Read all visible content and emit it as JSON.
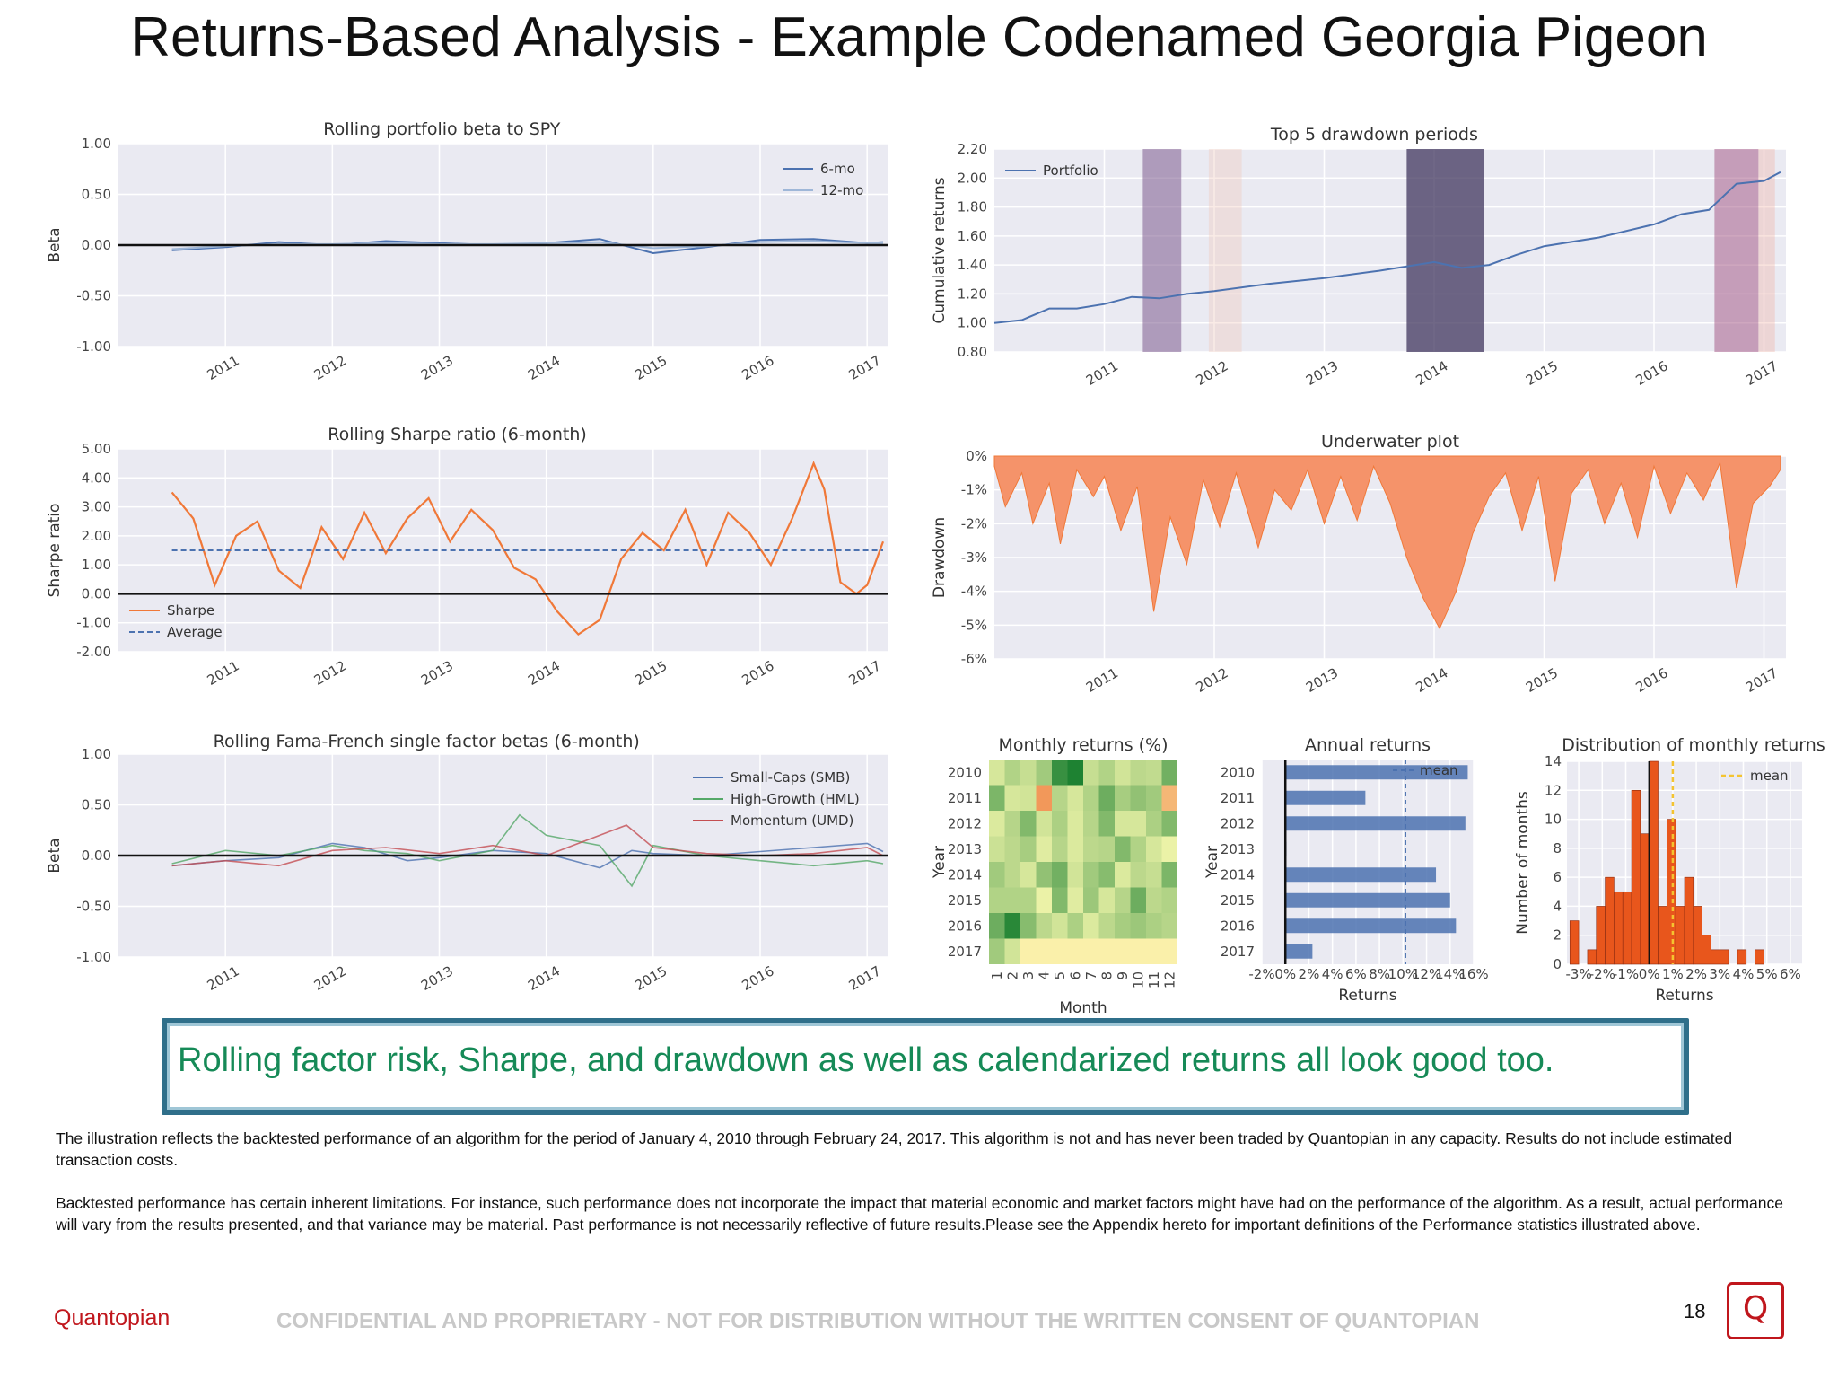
{
  "slide": {
    "title": "Returns-Based Analysis - Example Codenamed Georgia Pigeon",
    "takeaway": "Rolling factor risk, Sharpe, and drawdown as well as calendarized returns all look good too.",
    "disclaimer_1": "The illustration reflects the backtested performance of an algorithm for the period of January 4, 2010 through February 24, 2017. This algorithm is not and has never been traded by Quantopian in any capacity. Results do not include estimated transaction costs.",
    "disclaimer_2": "Backtested performance has certain inherent limitations.  For instance, such performance does not incorporate the impact that material economic and market factors might have had on the performance of the algorithm. As a result, actual performance will vary from the results presented, and that variance may be material. Past performance is not necessarily reflective of future results.Please see the Appendix hereto for important definitions of the Performance statistics illustrated above.",
    "brand": "Quantopian",
    "confidential": "CONFIDENTIAL AND PROPRIETARY - NOT FOR DISTRIBUTION WITHOUT THE WRITTEN CONSENT OF QUANTOPIAN",
    "page_number": "18",
    "logo_glyph": "Q"
  },
  "colors": {
    "plot_bg": "#eaeaf2",
    "blue": "#4c72b0",
    "lightblue": "#9fb7d8",
    "orange": "#f07838",
    "underwater": "#f5936a",
    "green": "#55a868",
    "red": "#c44e52",
    "hist": "#e8561c",
    "mean": "#f4c430",
    "takeaway": "#168a57",
    "brand": "#c0161c"
  },
  "chart_data": [
    {
      "id": "beta_spy",
      "type": "line",
      "title": "Rolling portfolio beta to SPY",
      "ylabel": "Beta",
      "xlabel": "",
      "ylim": [
        -1,
        1
      ],
      "yticks": [
        "1.00",
        "0.50",
        "0.00",
        "-0.50",
        "-1.00"
      ],
      "xticks": [
        "2011",
        "2012",
        "2013",
        "2014",
        "2015",
        "2016",
        "2017"
      ],
      "legend_position": "top-right",
      "series": [
        {
          "name": "6-mo",
          "x": [
            2010.5,
            2011.0,
            2011.5,
            2012.0,
            2012.5,
            2013.0,
            2013.5,
            2014.0,
            2014.5,
            2015.0,
            2015.5,
            2016.0,
            2016.5,
            2017.0,
            2017.15
          ],
          "values": [
            -0.05,
            -0.02,
            0.03,
            0.0,
            0.04,
            0.02,
            0.0,
            0.02,
            0.06,
            -0.08,
            -0.02,
            0.05,
            0.06,
            0.02,
            0.03
          ]
        },
        {
          "name": "12-mo",
          "x": [
            2010.5,
            2011.0,
            2011.5,
            2012.0,
            2012.5,
            2013.0,
            2013.5,
            2014.0,
            2014.5,
            2015.0,
            2015.5,
            2016.0,
            2016.5,
            2017.0,
            2017.15
          ],
          "values": [
            -0.04,
            -0.01,
            0.01,
            0.01,
            0.02,
            0.01,
            0.01,
            0.02,
            0.03,
            -0.03,
            -0.01,
            0.03,
            0.04,
            0.02,
            0.02
          ]
        }
      ]
    },
    {
      "id": "drawdown_periods",
      "type": "line",
      "title": "Top 5 drawdown periods",
      "ylabel": "Cumulative returns",
      "xlabel": "",
      "ylim": [
        0.8,
        2.2
      ],
      "yticks": [
        "2.20",
        "2.00",
        "1.80",
        "1.60",
        "1.40",
        "1.20",
        "1.00",
        "0.80"
      ],
      "xticks": [
        "2011",
        "2012",
        "2013",
        "2014",
        "2015",
        "2016",
        "2017"
      ],
      "legend_position": "top-left",
      "series": [
        {
          "name": "Portfolio",
          "x": [
            2010.0,
            2010.25,
            2010.5,
            2010.75,
            2011.0,
            2011.25,
            2011.5,
            2011.75,
            2012.0,
            2012.5,
            2013.0,
            2013.5,
            2014.0,
            2014.25,
            2014.5,
            2014.75,
            2015.0,
            2015.5,
            2016.0,
            2016.25,
            2016.5,
            2016.75,
            2017.0,
            2017.15
          ],
          "values": [
            1.0,
            1.02,
            1.1,
            1.1,
            1.13,
            1.18,
            1.17,
            1.2,
            1.22,
            1.27,
            1.31,
            1.36,
            1.42,
            1.38,
            1.4,
            1.47,
            1.53,
            1.59,
            1.68,
            1.75,
            1.78,
            1.96,
            1.98,
            2.04
          ]
        }
      ],
      "drawdown_shading": [
        [
          2011.35,
          2011.7
        ],
        [
          2011.95,
          2012.25
        ],
        [
          2013.75,
          2014.45
        ],
        [
          2016.55,
          2016.95
        ],
        [
          2016.95,
          2017.1
        ]
      ]
    },
    {
      "id": "rolling_sharpe",
      "type": "line",
      "title": "Rolling Sharpe ratio (6-month)",
      "ylabel": "Sharpe ratio",
      "xlabel": "",
      "ylim": [
        -2,
        5
      ],
      "yticks": [
        "5.00",
        "4.00",
        "3.00",
        "2.00",
        "1.00",
        "0.00",
        "-1.00",
        "-2.00"
      ],
      "xticks": [
        "2011",
        "2012",
        "2013",
        "2014",
        "2015",
        "2016",
        "2017"
      ],
      "legend_position": "bottom-left",
      "average": 1.5,
      "series": [
        {
          "name": "Sharpe",
          "x": [
            2010.5,
            2010.7,
            2010.9,
            2011.1,
            2011.3,
            2011.5,
            2011.7,
            2011.9,
            2012.1,
            2012.3,
            2012.5,
            2012.7,
            2012.9,
            2013.1,
            2013.3,
            2013.5,
            2013.7,
            2013.9,
            2014.1,
            2014.3,
            2014.5,
            2014.7,
            2014.9,
            2015.1,
            2015.3,
            2015.5,
            2015.7,
            2015.9,
            2016.1,
            2016.3,
            2016.5,
            2016.6,
            2016.75,
            2016.9,
            2017.0,
            2017.15
          ],
          "values": [
            3.5,
            2.6,
            0.3,
            2.0,
            2.5,
            0.8,
            0.2,
            2.3,
            1.2,
            2.8,
            1.4,
            2.6,
            3.3,
            1.8,
            2.9,
            2.2,
            0.9,
            0.5,
            -0.6,
            -1.4,
            -0.9,
            1.2,
            2.1,
            1.5,
            2.9,
            1.0,
            2.8,
            2.1,
            1.0,
            2.6,
            4.5,
            3.6,
            0.4,
            0.0,
            0.3,
            1.8
          ]
        },
        {
          "name": "Average",
          "x": [
            2010.5,
            2017.15
          ],
          "values": [
            1.5,
            1.5
          ]
        }
      ]
    },
    {
      "id": "underwater",
      "type": "area",
      "title": "Underwater plot",
      "ylabel": "Drawdown",
      "xlabel": "",
      "ylim": [
        -6,
        0
      ],
      "yticks": [
        "0%",
        "-1%",
        "-2%",
        "-3%",
        "-4%",
        "-5%",
        "-6%"
      ],
      "xticks": [
        "2011",
        "2012",
        "2013",
        "2014",
        "2015",
        "2016",
        "2017"
      ],
      "series": [
        {
          "name": "Drawdown",
          "x": [
            2010.0,
            2010.1,
            2010.25,
            2010.35,
            2010.5,
            2010.6,
            2010.75,
            2010.9,
            2011.0,
            2011.15,
            2011.3,
            2011.45,
            2011.6,
            2011.75,
            2011.9,
            2012.05,
            2012.2,
            2012.4,
            2012.55,
            2012.7,
            2012.85,
            2013.0,
            2013.15,
            2013.3,
            2013.45,
            2013.6,
            2013.75,
            2013.9,
            2014.05,
            2014.2,
            2014.35,
            2014.5,
            2014.65,
            2014.8,
            2014.95,
            2015.1,
            2015.25,
            2015.4,
            2015.55,
            2015.7,
            2015.85,
            2016.0,
            2016.15,
            2016.3,
            2016.45,
            2016.6,
            2016.75,
            2016.9,
            2017.05,
            2017.15
          ],
          "values": [
            -0.3,
            -1.5,
            -0.5,
            -2.0,
            -0.8,
            -2.6,
            -0.4,
            -1.2,
            -0.6,
            -2.2,
            -0.9,
            -4.6,
            -1.8,
            -3.2,
            -0.7,
            -2.1,
            -0.5,
            -2.7,
            -1.0,
            -1.6,
            -0.4,
            -2.0,
            -0.6,
            -1.9,
            -0.3,
            -1.4,
            -3.0,
            -4.2,
            -5.1,
            -4.0,
            -2.3,
            -1.2,
            -0.5,
            -2.2,
            -0.6,
            -3.7,
            -1.1,
            -0.4,
            -2.0,
            -0.8,
            -2.4,
            -0.3,
            -1.7,
            -0.5,
            -1.3,
            -0.2,
            -3.9,
            -1.4,
            -0.9,
            -0.4
          ]
        }
      ]
    },
    {
      "id": "ff_betas",
      "type": "line",
      "title": "Rolling Fama-French single factor betas (6-month)",
      "ylabel": "Beta",
      "xlabel": "",
      "ylim": [
        -1,
        1
      ],
      "yticks": [
        "1.00",
        "0.50",
        "0.00",
        "-0.50",
        "-1.00"
      ],
      "xticks": [
        "2011",
        "2012",
        "2013",
        "2014",
        "2015",
        "2016",
        "2017"
      ],
      "legend_position": "top-right",
      "series": [
        {
          "name": "Small-Caps (SMB)",
          "x": [
            2010.5,
            2011.0,
            2011.5,
            2012.0,
            2012.3,
            2012.7,
            2013.0,
            2013.5,
            2014.0,
            2014.5,
            2014.8,
            2015.0,
            2015.5,
            2016.0,
            2016.5,
            2017.0,
            2017.15
          ],
          "values": [
            -0.1,
            -0.05,
            -0.02,
            0.12,
            0.08,
            -0.05,
            -0.02,
            0.05,
            0.02,
            -0.12,
            0.05,
            0.02,
            0.0,
            0.04,
            0.08,
            0.12,
            0.04
          ]
        },
        {
          "name": "High-Growth (HML)",
          "x": [
            2010.5,
            2011.0,
            2011.5,
            2012.0,
            2012.3,
            2012.7,
            2013.0,
            2013.5,
            2013.75,
            2014.0,
            2014.5,
            2014.8,
            2015.0,
            2015.5,
            2016.0,
            2016.5,
            2017.0,
            2017.15
          ],
          "values": [
            -0.08,
            0.05,
            0.0,
            0.1,
            0.05,
            0.02,
            -0.05,
            0.05,
            0.4,
            0.2,
            0.1,
            -0.3,
            0.1,
            0.0,
            -0.05,
            -0.1,
            -0.05,
            -0.08
          ]
        },
        {
          "name": "Momentum (UMD)",
          "x": [
            2010.5,
            2011.0,
            2011.5,
            2012.0,
            2012.5,
            2013.0,
            2013.5,
            2014.0,
            2014.5,
            2014.75,
            2015.0,
            2015.5,
            2016.0,
            2016.5,
            2017.0,
            2017.15
          ],
          "values": [
            -0.1,
            -0.05,
            -0.1,
            0.05,
            0.08,
            0.02,
            0.1,
            0.0,
            0.2,
            0.3,
            0.08,
            0.02,
            0.0,
            0.02,
            0.08,
            0.0
          ]
        }
      ]
    },
    {
      "id": "monthly_returns",
      "type": "heatmap",
      "title": "Monthly returns (%)",
      "ylabel": "Year",
      "xlabel": "Month",
      "rows": [
        "2010",
        "2011",
        "2012",
        "2013",
        "2014",
        "2015",
        "2016",
        "2017"
      ],
      "cols": [
        "1",
        "2",
        "3",
        "4",
        "5",
        "6",
        "7",
        "8",
        "9",
        "10",
        "11",
        "12"
      ],
      "values": [
        [
          0.5,
          1.2,
          0.8,
          1.5,
          3.5,
          4.0,
          0.8,
          1.2,
          0.6,
          1.0,
          0.9,
          2.4
        ],
        [
          2.2,
          0.5,
          0.6,
          -2.0,
          1.1,
          0.5,
          1.2,
          2.5,
          1.4,
          1.8,
          1.5,
          -1.3
        ],
        [
          0.4,
          1.1,
          2.1,
          0.6,
          1.3,
          0.4,
          1.1,
          2.1,
          0.5,
          0.5,
          1.3,
          2.1
        ],
        [
          0.7,
          1.0,
          1.4,
          0.3,
          1.1,
          0.4,
          1.0,
          1.1,
          2.1,
          1.2,
          0.5,
          0.1
        ],
        [
          1.5,
          1.0,
          0.5,
          1.8,
          2.4,
          0.6,
          1.5,
          2.0,
          0.4,
          1.0,
          0.8,
          2.2
        ],
        [
          1.2,
          1.2,
          1.2,
          0.1,
          2.1,
          0.3,
          1.6,
          0.5,
          1.1,
          2.5,
          1.0,
          1.2
        ],
        [
          2.5,
          3.8,
          2.0,
          1.0,
          0.6,
          1.3,
          0.4,
          1.0,
          1.4,
          1.6,
          1.3,
          1.1
        ],
        [
          1.5,
          0.6,
          0.0,
          0.0,
          0.0,
          0.0,
          0.0,
          0.0,
          0.0,
          0.0,
          0.0,
          0.0
        ]
      ]
    },
    {
      "id": "annual_returns",
      "type": "bar",
      "title": "Annual returns",
      "ylabel": "Year",
      "xlabel": "Returns",
      "orientation": "horizontal",
      "categories": [
        "2010",
        "2011",
        "2012",
        "2013",
        "2014",
        "2015",
        "2016",
        "2017"
      ],
      "values": [
        15.5,
        6.8,
        15.3,
        0.1,
        12.8,
        14.0,
        14.5,
        2.3
      ],
      "mean": 10.2,
      "xlim": [
        -2,
        16
      ],
      "xticks": [
        "-2%",
        "0%",
        "2%",
        "4%",
        "6%",
        "8%",
        "10%",
        "12%",
        "14%",
        "16%"
      ],
      "legend_entry": "mean"
    },
    {
      "id": "monthly_dist",
      "type": "bar",
      "title": "Distribution of monthly returns",
      "ylabel": "Number of months",
      "xlabel": "Returns",
      "xlim": [
        -3.5,
        6.5
      ],
      "ylim": [
        0,
        14
      ],
      "yticks": [
        "14",
        "12",
        "10",
        "8",
        "6",
        "4",
        "2",
        "0"
      ],
      "xticks": [
        "-3%",
        "-2%",
        "-1%",
        "0%",
        "1%",
        "2%",
        "3%",
        "4%",
        "5%",
        "6%"
      ],
      "bin_width": 0.375,
      "bin_starts": [
        -3.375,
        -3.0,
        -2.625,
        -2.25,
        -1.875,
        -1.5,
        -1.125,
        -0.75,
        -0.375,
        0.0,
        0.375,
        0.75,
        1.125,
        1.5,
        1.875,
        2.25,
        2.625,
        3.0,
        3.375,
        3.75,
        4.125,
        4.5,
        4.875,
        5.25
      ],
      "counts": [
        3,
        0,
        1,
        4,
        6,
        5,
        5,
        12,
        9,
        14,
        4,
        10,
        4,
        6,
        4,
        2,
        1,
        1,
        0,
        1,
        0,
        1,
        0,
        0
      ],
      "zero_line": 0,
      "mean": 1.0,
      "legend_entry": "mean"
    }
  ]
}
